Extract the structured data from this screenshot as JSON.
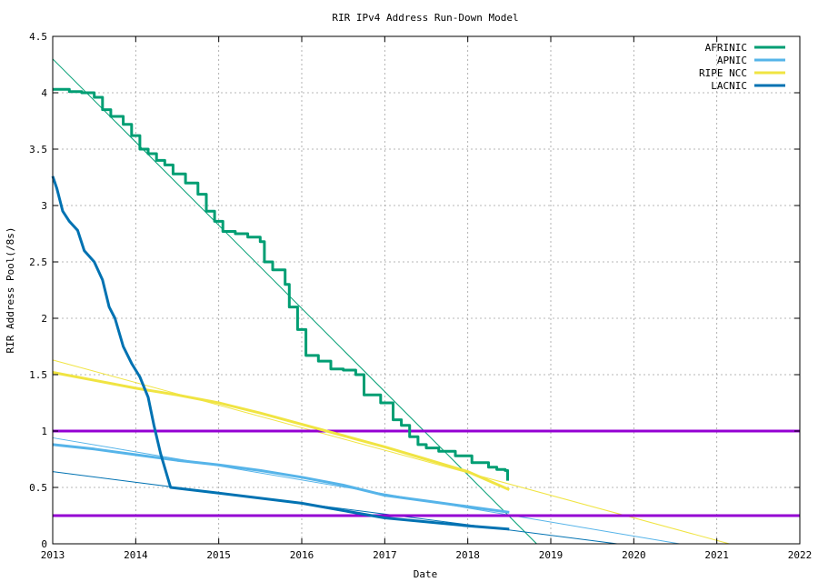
{
  "chart_data": {
    "type": "line",
    "title": "RIR IPv4 Address Run-Down Model",
    "xlabel": "Date",
    "ylabel": "RIR Address Pool(/8s)",
    "xlim": [
      2013,
      2022
    ],
    "ylim": [
      0,
      4.5
    ],
    "x_ticks": [
      "2013",
      "2014",
      "2015",
      "2016",
      "2017",
      "2018",
      "2019",
      "2020",
      "2021",
      "2022"
    ],
    "y_ticks": [
      "0",
      "0.5",
      "1",
      "1.5",
      "2",
      "2.5",
      "3",
      "3.5",
      "4",
      "4.5"
    ],
    "grid": true,
    "legend_position": "top-right",
    "series": [
      {
        "name": "AFRINIC",
        "color": "#009e73",
        "data": [
          [
            2013.0,
            4.03
          ],
          [
            2013.1,
            4.03
          ],
          [
            2013.2,
            4.01
          ],
          [
            2013.35,
            4.0
          ],
          [
            2013.5,
            3.96
          ],
          [
            2013.6,
            3.85
          ],
          [
            2013.7,
            3.79
          ],
          [
            2013.85,
            3.72
          ],
          [
            2013.95,
            3.62
          ],
          [
            2014.05,
            3.5
          ],
          [
            2014.15,
            3.46
          ],
          [
            2014.25,
            3.4
          ],
          [
            2014.35,
            3.36
          ],
          [
            2014.45,
            3.28
          ],
          [
            2014.6,
            3.2
          ],
          [
            2014.75,
            3.1
          ],
          [
            2014.85,
            2.95
          ],
          [
            2014.95,
            2.86
          ],
          [
            2015.05,
            2.77
          ],
          [
            2015.2,
            2.75
          ],
          [
            2015.35,
            2.72
          ],
          [
            2015.5,
            2.68
          ],
          [
            2015.55,
            2.5
          ],
          [
            2015.65,
            2.43
          ],
          [
            2015.8,
            2.3
          ],
          [
            2015.85,
            2.1
          ],
          [
            2015.95,
            1.9
          ],
          [
            2016.05,
            1.67
          ],
          [
            2016.2,
            1.62
          ],
          [
            2016.35,
            1.55
          ],
          [
            2016.5,
            1.54
          ],
          [
            2016.65,
            1.5
          ],
          [
            2016.75,
            1.32
          ],
          [
            2016.95,
            1.25
          ],
          [
            2017.1,
            1.1
          ],
          [
            2017.2,
            1.05
          ],
          [
            2017.3,
            0.95
          ],
          [
            2017.4,
            0.88
          ],
          [
            2017.5,
            0.85
          ],
          [
            2017.65,
            0.82
          ],
          [
            2017.85,
            0.78
          ],
          [
            2018.05,
            0.72
          ],
          [
            2018.25,
            0.68
          ],
          [
            2018.35,
            0.66
          ],
          [
            2018.45,
            0.65
          ],
          [
            2018.48,
            0.56
          ]
        ]
      },
      {
        "name": "APNIC",
        "color": "#56b4e9",
        "data": [
          [
            2013.0,
            0.88
          ],
          [
            2013.5,
            0.84
          ],
          [
            2014.0,
            0.79
          ],
          [
            2014.5,
            0.74
          ],
          [
            2015.0,
            0.7
          ],
          [
            2015.5,
            0.65
          ],
          [
            2016.0,
            0.59
          ],
          [
            2016.5,
            0.52
          ],
          [
            2017.0,
            0.43
          ],
          [
            2017.5,
            0.38
          ],
          [
            2018.0,
            0.33
          ],
          [
            2018.5,
            0.28
          ]
        ]
      },
      {
        "name": "RIPE NCC",
        "color": "#f0e442",
        "data": [
          [
            2013.0,
            1.52
          ],
          [
            2013.5,
            1.45
          ],
          [
            2014.0,
            1.38
          ],
          [
            2014.5,
            1.32
          ],
          [
            2015.0,
            1.25
          ],
          [
            2015.5,
            1.16
          ],
          [
            2016.0,
            1.06
          ],
          [
            2016.5,
            0.96
          ],
          [
            2017.0,
            0.86
          ],
          [
            2017.5,
            0.75
          ],
          [
            2018.0,
            0.64
          ],
          [
            2018.5,
            0.48
          ]
        ]
      },
      {
        "name": "LACNIC",
        "color": "#0072b2",
        "data": [
          [
            2013.0,
            3.26
          ],
          [
            2013.05,
            3.15
          ],
          [
            2013.12,
            2.95
          ],
          [
            2013.2,
            2.86
          ],
          [
            2013.3,
            2.78
          ],
          [
            2013.38,
            2.6
          ],
          [
            2013.5,
            2.5
          ],
          [
            2013.6,
            2.34
          ],
          [
            2013.68,
            2.1
          ],
          [
            2013.75,
            2.0
          ],
          [
            2013.85,
            1.75
          ],
          [
            2013.95,
            1.6
          ],
          [
            2014.05,
            1.48
          ],
          [
            2014.15,
            1.3
          ],
          [
            2014.22,
            1.05
          ],
          [
            2014.3,
            0.8
          ],
          [
            2014.38,
            0.6
          ],
          [
            2014.42,
            0.5
          ],
          [
            2015.0,
            0.45
          ],
          [
            2016.0,
            0.36
          ],
          [
            2017.0,
            0.23
          ],
          [
            2018.0,
            0.16
          ],
          [
            2018.5,
            0.13
          ]
        ]
      }
    ],
    "trend_lines": [
      {
        "series": "AFRINIC",
        "color": "#009e73",
        "start": [
          2013.0,
          4.3
        ],
        "end": [
          2018.83,
          0.0
        ]
      },
      {
        "series": "APNIC",
        "color": "#56b4e9",
        "start": [
          2013.0,
          0.94
        ],
        "end": [
          2020.55,
          0.0
        ]
      },
      {
        "series": "RIPE NCC",
        "color": "#f0e442",
        "start": [
          2013.0,
          1.63
        ],
        "end": [
          2021.15,
          0.0
        ]
      },
      {
        "series": "LACNIC",
        "color": "#0072b2",
        "start": [
          2013.0,
          0.64
        ],
        "end": [
          2019.8,
          0.0
        ]
      }
    ],
    "threshold_lines": [
      {
        "y": 1.0,
        "color": "#9400d3"
      },
      {
        "y": 0.25,
        "color": "#9400d3"
      }
    ]
  }
}
